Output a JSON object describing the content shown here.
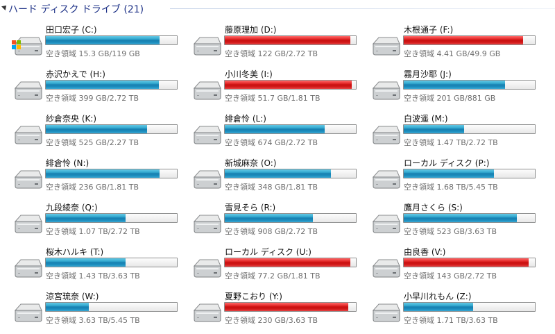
{
  "header": {
    "title": "ハード ディスク ドライブ (21)"
  },
  "drives": [
    {
      "name": "田口宏子 (C:)",
      "free": "空き領域 15.3 GB/119 GB",
      "usage": 0.87,
      "status": "normal",
      "icon": "system-drive-icon"
    },
    {
      "name": "藤原理加 (D:)",
      "free": "空き領域 122 GB/2.72 TB",
      "usage": 0.96,
      "status": "warn",
      "icon": "hard-drive-icon"
    },
    {
      "name": "木根通子 (F:)",
      "free": "空き領域 4.41 GB/49.9 GB",
      "usage": 0.91,
      "status": "warn",
      "icon": "hard-drive-icon"
    },
    {
      "name": "赤沢かえで (H:)",
      "free": "空き領域 399 GB/2.72 TB",
      "usage": 0.86,
      "status": "normal",
      "icon": "hard-drive-icon"
    },
    {
      "name": "小川冬美 (I:)",
      "free": "空き領域 51.7 GB/1.81 TB",
      "usage": 0.97,
      "status": "warn",
      "icon": "hard-drive-icon"
    },
    {
      "name": "霧月沙耶 (J:)",
      "free": "空き領域 201 GB/881 GB",
      "usage": 0.77,
      "status": "normal",
      "icon": "hard-drive-icon"
    },
    {
      "name": "紗倉奈央 (K:)",
      "free": "空き領域 525 GB/2.27 TB",
      "usage": 0.77,
      "status": "normal",
      "icon": "hard-drive-icon"
    },
    {
      "name": "緋倉怜 (L:)",
      "free": "空き領域 674 GB/2.72 TB",
      "usage": 0.76,
      "status": "normal",
      "icon": "hard-drive-icon"
    },
    {
      "name": "白波遥 (M:)",
      "free": "空き領域 1.47 TB/2.72 TB",
      "usage": 0.46,
      "status": "normal",
      "icon": "hard-drive-icon"
    },
    {
      "name": "緋倉怜 (N:)",
      "free": "空き領域 236 GB/1.81 TB",
      "usage": 0.87,
      "status": "normal",
      "icon": "hard-drive-icon"
    },
    {
      "name": "新城麻奈 (O:)",
      "free": "空き領域 348 GB/1.81 TB",
      "usage": 0.81,
      "status": "normal",
      "icon": "hard-drive-icon"
    },
    {
      "name": "ローカル ディスク (P:)",
      "free": "空き領域 1.68 TB/5.45 TB",
      "usage": 0.69,
      "status": "normal",
      "icon": "hard-drive-icon"
    },
    {
      "name": "九段綾奈 (Q:)",
      "free": "空き領域 1.07 TB/2.72 TB",
      "usage": 0.61,
      "status": "normal",
      "icon": "hard-drive-icon"
    },
    {
      "name": "雪見そら (R:)",
      "free": "空き領域 908 GB/2.72 TB",
      "usage": 0.67,
      "status": "normal",
      "icon": "hard-drive-icon"
    },
    {
      "name": "鷹月さくら (S:)",
      "free": "空き領域 523 GB/3.63 TB",
      "usage": 0.86,
      "status": "normal",
      "icon": "hard-drive-icon"
    },
    {
      "name": "桜木ハルキ (T:)",
      "free": "空き領域 1.43 TB/3.63 TB",
      "usage": 0.61,
      "status": "normal",
      "icon": "hard-drive-icon"
    },
    {
      "name": "ローカル ディスク (U:)",
      "free": "空き領域 77.2 GB/1.81 TB",
      "usage": 0.96,
      "status": "warn",
      "icon": "hard-drive-icon"
    },
    {
      "name": "由良香 (V:)",
      "free": "空き領域 143 GB/2.72 TB",
      "usage": 0.95,
      "status": "warn",
      "icon": "hard-drive-icon"
    },
    {
      "name": "涼宮琉奈 (W:)",
      "free": "空き領域 3.63 TB/5.45 TB",
      "usage": 0.33,
      "status": "normal",
      "icon": "hard-drive-icon"
    },
    {
      "name": "夏野こおり (Y:)",
      "free": "空き領域 230 GB/3.63 TB",
      "usage": 0.94,
      "status": "warn",
      "icon": "hard-drive-icon"
    },
    {
      "name": "小早川れもん (Z:)",
      "free": "空き領域 1.71 TB/3.63 TB",
      "usage": 0.53,
      "status": "normal",
      "icon": "hard-drive-icon"
    }
  ]
}
